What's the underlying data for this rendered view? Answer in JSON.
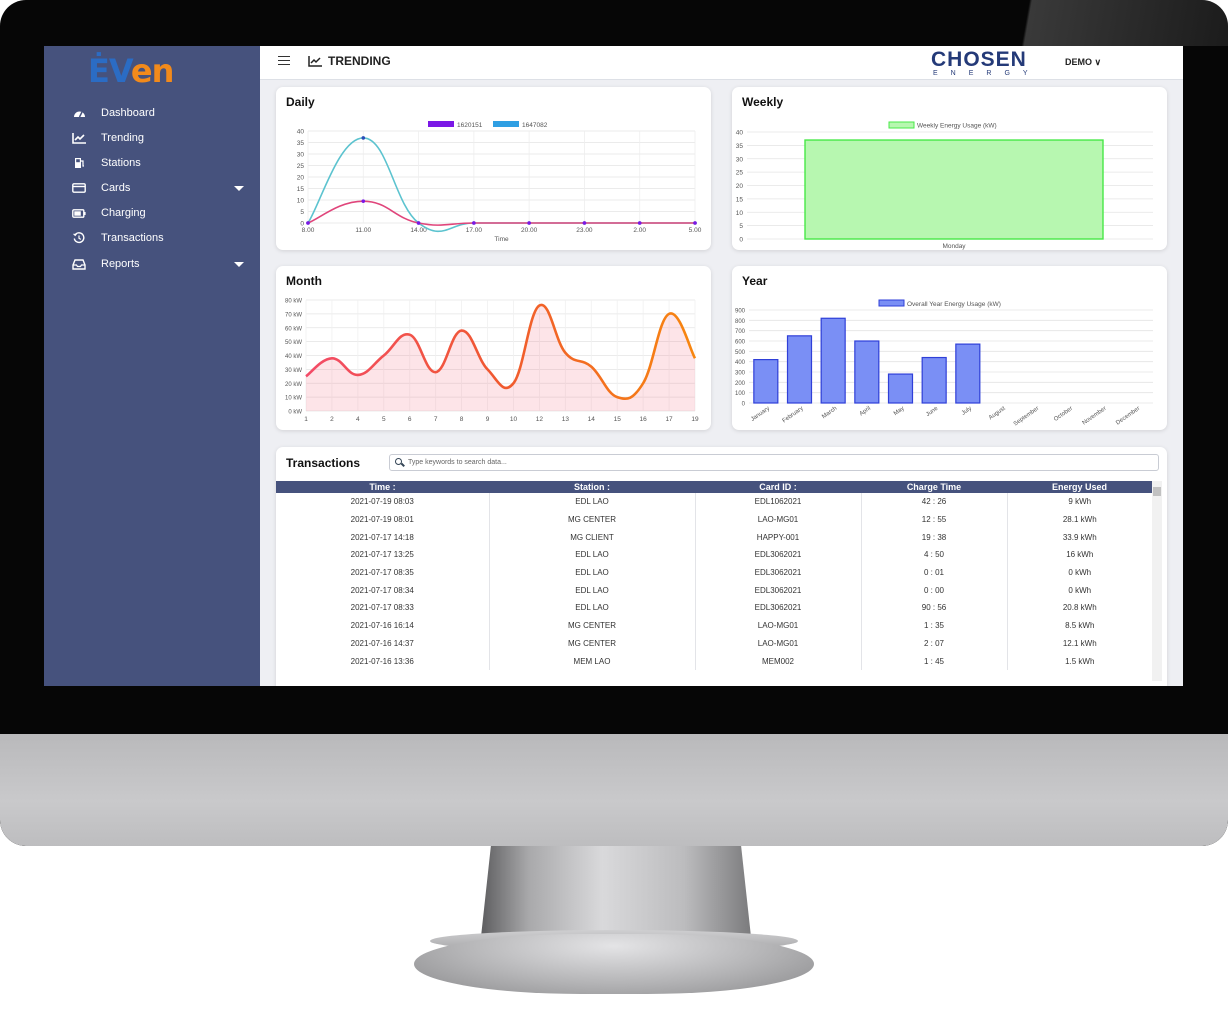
{
  "sidebar": {
    "logo_ev": "ĖV",
    "logo_en": "en",
    "items": [
      {
        "label": "Dashboard",
        "icon": "gauge-icon"
      },
      {
        "label": "Trending",
        "icon": "chart-line-icon"
      },
      {
        "label": "Stations",
        "icon": "gas-pump-icon"
      },
      {
        "label": "Cards",
        "icon": "credit-card-icon",
        "expandable": true
      },
      {
        "label": "Charging",
        "icon": "battery-icon"
      },
      {
        "label": "Transactions",
        "icon": "history-icon"
      },
      {
        "label": "Reports",
        "icon": "inbox-icon",
        "expandable": true
      }
    ]
  },
  "topbar": {
    "title": "TRENDING",
    "brand_main": "CHOSEN",
    "brand_sub": "ENERGY",
    "user": "DEMO"
  },
  "cards": {
    "daily": "Daily",
    "weekly": "Weekly",
    "month": "Month",
    "year": "Year",
    "transactions": "Transactions"
  },
  "chart_data": [
    {
      "id": "daily",
      "type": "line",
      "title": "Daily",
      "xlabel": "Time",
      "x": [
        "8.00",
        "11.00",
        "14.00",
        "17.00",
        "20.00",
        "23.00",
        "2.00",
        "5.00"
      ],
      "ylim": [
        0,
        40
      ],
      "yticks": [
        0,
        5,
        10,
        15,
        20,
        25,
        30,
        35,
        40
      ],
      "series": [
        {
          "name": "1620151",
          "legend_color": "#7b18e6",
          "color": "#e0457b",
          "values": [
            0,
            9.5,
            0,
            0,
            0,
            0,
            0,
            0
          ]
        },
        {
          "name": "1647082",
          "legend_color": "#2f9fe3",
          "color": "#5cc3cf",
          "values": [
            0,
            37,
            0,
            0,
            0,
            0,
            0,
            0
          ]
        }
      ],
      "legend": "top",
      "grid": true
    },
    {
      "id": "weekly",
      "type": "bar",
      "title": "Weekly",
      "categories": [
        "Monday"
      ],
      "series": [
        {
          "name": "Weekly Energy Usage (kW)",
          "values": [
            37
          ]
        }
      ],
      "ylim": [
        0,
        40
      ],
      "yticks": [
        0,
        5,
        10,
        15,
        20,
        25,
        30,
        35,
        40
      ],
      "color": "#b7f7b0",
      "border": "#48e848",
      "legend": "top",
      "grid": true
    },
    {
      "id": "month",
      "type": "area",
      "title": "Month",
      "x": [
        "1",
        "2",
        "4",
        "5",
        "6",
        "7",
        "8",
        "9",
        "10",
        "12",
        "13",
        "14",
        "15",
        "16",
        "17",
        "19"
      ],
      "values": [
        25,
        38,
        26,
        40,
        55,
        28,
        58,
        30,
        20,
        76,
        42,
        32,
        10,
        20,
        70,
        38
      ],
      "ylim": [
        0,
        80
      ],
      "yticks": [
        "0 kW",
        "10 kW",
        "20 kW",
        "30 kW",
        "40 kW",
        "50 kW",
        "60 kW",
        "70 kW",
        "80 kW"
      ],
      "grid": true
    },
    {
      "id": "year",
      "type": "bar",
      "title": "Year",
      "categories": [
        "January",
        "February",
        "March",
        "April",
        "May",
        "June",
        "July",
        "August",
        "September",
        "October",
        "November",
        "December"
      ],
      "series": [
        {
          "name": "Overall Year Energy Usage  (kW)",
          "values": [
            420,
            650,
            820,
            600,
            280,
            440,
            570,
            0,
            0,
            0,
            0,
            0
          ]
        }
      ],
      "ylim": [
        0,
        900
      ],
      "yticks": [
        0,
        100,
        200,
        300,
        400,
        500,
        600,
        700,
        800,
        900
      ],
      "color": "#7a8ff5",
      "border": "#2f3fd8",
      "legend": "top",
      "grid": true
    }
  ],
  "transactions": {
    "search_placeholder": "Type keywords to search data...",
    "headers": [
      "Time :",
      "Station :",
      "Card ID :",
      "Charge Time",
      "Energy Used"
    ],
    "rows": [
      [
        "2021-07-19 08:03",
        "EDL LAO",
        "EDL1062021",
        "42 : 26",
        "9 kWh"
      ],
      [
        "2021-07-19 08:01",
        "MG CENTER",
        "LAO-MG01",
        "12 : 55",
        "28.1 kWh"
      ],
      [
        "2021-07-17 14:18",
        "MG CLIENT",
        "HAPPY-001",
        "19 : 38",
        "33.9 kWh"
      ],
      [
        "2021-07-17 13:25",
        "EDL LAO",
        "EDL3062021",
        "4 : 50",
        "16 kWh"
      ],
      [
        "2021-07-17 08:35",
        "EDL LAO",
        "EDL3062021",
        "0 : 01",
        "0 kWh"
      ],
      [
        "2021-07-17 08:34",
        "EDL LAO",
        "EDL3062021",
        "0 : 00",
        "0 kWh"
      ],
      [
        "2021-07-17 08:33",
        "EDL LAO",
        "EDL3062021",
        "90 : 56",
        "20.8 kWh"
      ],
      [
        "2021-07-16 16:14",
        "MG CENTER",
        "LAO-MG01",
        "1 : 35",
        "8.5 kWh"
      ],
      [
        "2021-07-16 14:37",
        "MG CENTER",
        "LAO-MG01",
        "2 : 07",
        "12.1 kWh"
      ],
      [
        "2021-07-16 13:36",
        "MEM LAO",
        "MEM002",
        "1 : 45",
        "1.5 kWh"
      ]
    ]
  }
}
